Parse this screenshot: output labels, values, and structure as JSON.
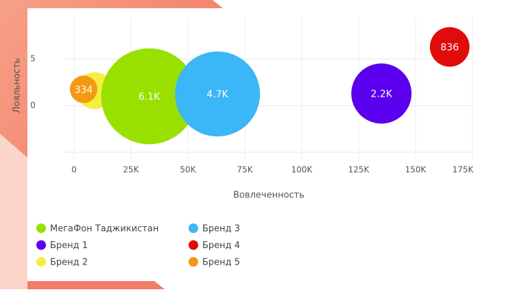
{
  "chart_data": {
    "type": "bubble",
    "x_label": "Вовлеченность",
    "y_label": "Лояльность",
    "xlim": [
      0,
      175000
    ],
    "ylim": [
      -5,
      9.5
    ],
    "xticks": [
      0,
      {
        "value": 25000,
        "label": "25K"
      },
      {
        "value": 50000,
        "label": "50K"
      },
      {
        "value": 75000,
        "label": "75K"
      },
      {
        "value": 100000,
        "label": "100K"
      },
      {
        "value": 125000,
        "label": "125K"
      },
      {
        "value": 150000,
        "label": "150K"
      },
      {
        "value": 175000,
        "label": "175K"
      }
    ],
    "yticks": [
      0,
      5
    ],
    "grid": true,
    "series": [
      {
        "name": "МегаФон Таджикистан",
        "color": "#99e000",
        "x": [
          33000
        ],
        "y": [
          1
        ],
        "sizes": [
          6100
        ],
        "value_labels": [
          "6.1K"
        ]
      },
      {
        "name": "Бренд 1",
        "color": "#5b00ee",
        "x": [
          135000
        ],
        "y": [
          1.3
        ],
        "sizes": [
          2200
        ],
        "value_labels": [
          "2.2K"
        ]
      },
      {
        "name": "Бренд 2",
        "color": "#f6ee40",
        "x": [
          9000
        ],
        "y": [
          1.6
        ],
        "sizes": [
          700
        ]
      },
      {
        "name": "Бренд 3",
        "color": "#3bb6f6",
        "x": [
          63000
        ],
        "y": [
          1.25
        ],
        "sizes": [
          4700
        ],
        "value_labels": [
          "4.7K"
        ]
      },
      {
        "name": "Бренд 4",
        "color": "#e00b0b",
        "x": [
          165000
        ],
        "y": [
          6.3
        ],
        "sizes": [
          836
        ],
        "value_labels": [
          "836"
        ]
      },
      {
        "name": "Бренд 5",
        "color": "#f39a12",
        "x": [
          4200
        ],
        "y": [
          1.75
        ],
        "sizes": [
          334
        ],
        "value_labels": [
          "334"
        ]
      }
    ]
  }
}
